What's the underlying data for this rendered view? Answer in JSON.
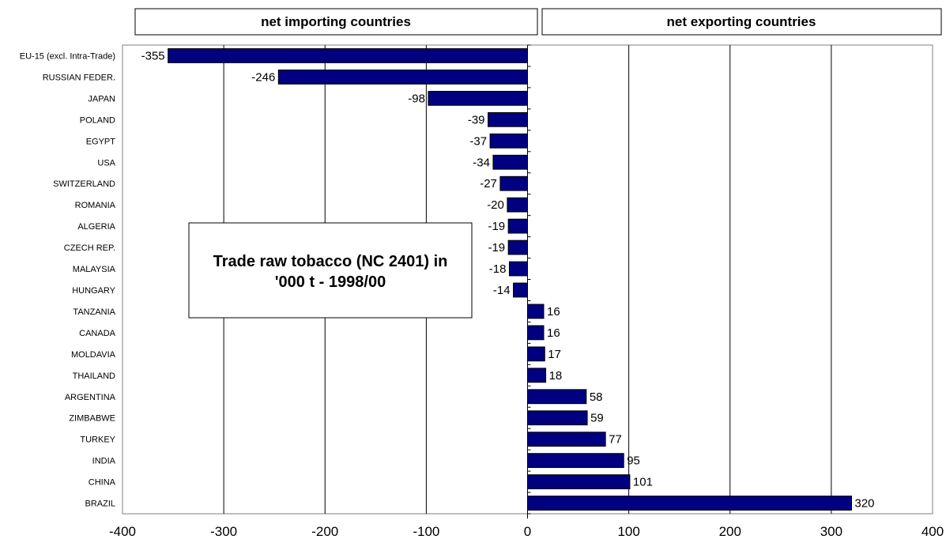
{
  "headers": {
    "left": "net importing countries",
    "right": "net exporting countries"
  },
  "note": {
    "line1": "Trade raw tobacco (NC 2401) in",
    "line2": "'000 t - 1998/00"
  },
  "chart_data": {
    "type": "bar",
    "orientation": "horizontal",
    "categories": [
      "EU-15 (excl. Intra-Trade)",
      "RUSSIAN FEDER.",
      "JAPAN",
      "POLAND",
      "EGYPT",
      "USA",
      "SWITZERLAND",
      "ROMANIA",
      "ALGERIA",
      "CZECH REP.",
      "MALAYSIA",
      "HUNGARY",
      "TANZANIA",
      "CANADA",
      "MOLDAVIA",
      "THAILAND",
      "ARGENTINA",
      "ZIMBABWE",
      "TURKEY",
      "INDIA",
      "CHINA",
      "BRAZIL"
    ],
    "values": [
      -355,
      -246,
      -98,
      -39,
      -37,
      -34,
      -27,
      -20,
      -19,
      -19,
      -18,
      -14,
      16,
      16,
      17,
      18,
      58,
      59,
      77,
      95,
      101,
      320
    ],
    "xlim": [
      -400,
      400
    ],
    "xticks": [
      -400,
      -300,
      -200,
      -100,
      0,
      100,
      200,
      300,
      400
    ],
    "bar_color": "#000080",
    "grid": true
  }
}
